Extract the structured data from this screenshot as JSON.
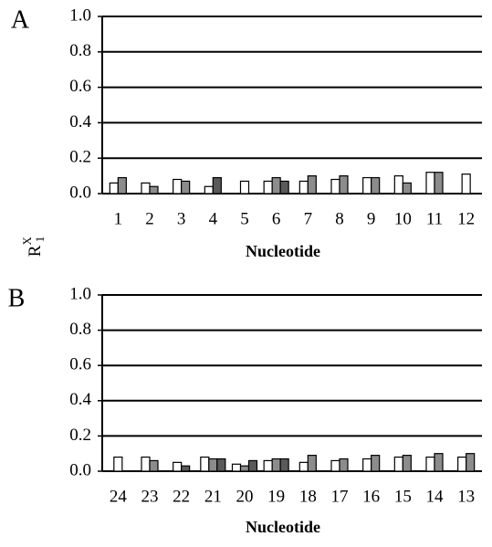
{
  "y_label": {
    "base": "R",
    "sup": "X",
    "sub": "1"
  },
  "chart_data": [
    {
      "type": "bar",
      "panel_label": "A",
      "x_label": "Nucleotide",
      "categories": [
        "1",
        "2",
        "3",
        "4",
        "5",
        "6",
        "7",
        "8",
        "9",
        "10",
        "11",
        "12"
      ],
      "series": [
        {
          "color": "#ffffff",
          "values": [
            0.06,
            0.06,
            0.08,
            0.04,
            0.07,
            0.07,
            0.07,
            0.08,
            0.09,
            0.1,
            0.12,
            0.11
          ]
        },
        {
          "color": "#8c8c8c",
          "values": [
            0.09,
            0.04,
            0.07,
            null,
            null,
            0.09,
            0.1,
            0.1,
            0.09,
            0.06,
            0.12,
            null
          ]
        },
        {
          "color": "#5a5a5a",
          "values": [
            null,
            null,
            null,
            0.09,
            null,
            0.07,
            null,
            null,
            null,
            null,
            null,
            null
          ]
        }
      ],
      "ylim": [
        0,
        1
      ],
      "yticks": [
        {
          "value": 0,
          "label": "0.0"
        },
        0.2,
        0.4,
        0.6,
        0.8,
        {
          "value": 1,
          "label": "1.0"
        }
      ],
      "grid": true
    },
    {
      "type": "bar",
      "panel_label": "B",
      "x_label": "Nucleotide",
      "categories": [
        "24",
        "23",
        "22",
        "21",
        "20",
        "19",
        "18",
        "17",
        "16",
        "15",
        "14",
        "13"
      ],
      "series": [
        {
          "color": "#ffffff",
          "values": [
            0.08,
            0.08,
            0.05,
            0.08,
            0.04,
            0.06,
            0.05,
            0.06,
            0.07,
            0.08,
            0.08,
            0.08
          ]
        },
        {
          "color": "#8c8c8c",
          "values": [
            null,
            0.06,
            null,
            0.07,
            0.03,
            0.07,
            0.09,
            0.07,
            0.09,
            0.09,
            0.1,
            0.1
          ]
        },
        {
          "color": "#5a5a5a",
          "values": [
            null,
            null,
            0.03,
            0.07,
            0.06,
            0.07,
            null,
            null,
            null,
            null,
            null,
            null
          ]
        }
      ],
      "ylim": [
        0,
        1
      ],
      "yticks": [
        {
          "value": 0,
          "label": "0.0"
        },
        0.2,
        0.4,
        0.6,
        0.8,
        {
          "value": 1,
          "label": "1.0"
        }
      ],
      "grid": true
    }
  ]
}
